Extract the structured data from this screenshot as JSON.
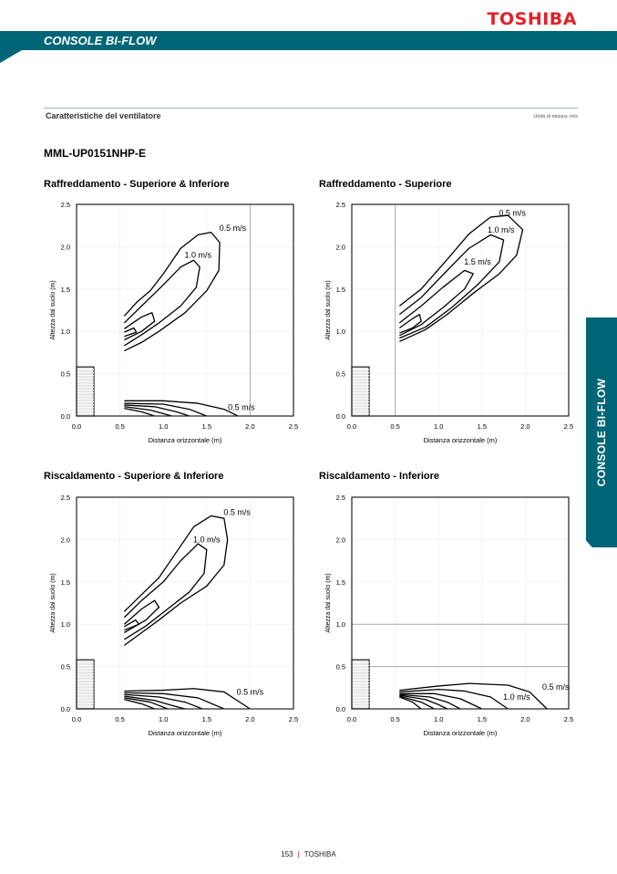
{
  "header": {
    "brand": "TOSHIBA",
    "band_title": "CONSOLE BI-FLOW"
  },
  "section": {
    "title": "Caratteristiche del ventilatore",
    "units": "Unità di misura: m/s"
  },
  "model": "MML-UP0151NHP-E",
  "side_tab": "CONSOLE BI-FLOW",
  "footer": {
    "page": "153",
    "brand": "TOSHIBA"
  },
  "colors": {
    "teal": "#006677",
    "red": "#e3202a"
  },
  "chart_data": [
    {
      "type": "contour",
      "title": "Raffreddamento - Superiore & Inferiore",
      "xlabel": "Distanza orizzontale (m)",
      "ylabel": "Altezza dal suolo (m)",
      "xlim": [
        0,
        2.5
      ],
      "ylim": [
        0,
        2.5
      ],
      "xticks": [
        "0.0",
        "0.5",
        "1.0",
        "1.5",
        "2.0",
        "2.5"
      ],
      "yticks": [
        "0.0",
        "0.5",
        "1.0",
        "1.5",
        "2.0",
        "2.5"
      ],
      "unit_box": {
        "width": 0.2,
        "height": 0.58
      },
      "ref_x": [
        2.0
      ],
      "ref_y": [],
      "contours": [
        [
          [
            0.55,
            1.18
          ],
          [
            0.7,
            1.35
          ],
          [
            0.85,
            1.48
          ],
          [
            1.0,
            1.68
          ],
          [
            1.2,
            1.98
          ],
          [
            1.4,
            2.14
          ],
          [
            1.55,
            2.17
          ],
          [
            1.65,
            2.05
          ],
          [
            1.64,
            1.72
          ],
          [
            1.5,
            1.48
          ],
          [
            1.25,
            1.22
          ],
          [
            0.95,
            1.0
          ],
          [
            0.75,
            0.87
          ],
          [
            0.55,
            0.77
          ]
        ],
        [
          [
            0.55,
            1.1
          ],
          [
            0.75,
            1.3
          ],
          [
            1.0,
            1.55
          ],
          [
            1.2,
            1.76
          ],
          [
            1.35,
            1.84
          ],
          [
            1.42,
            1.76
          ],
          [
            1.38,
            1.52
          ],
          [
            1.2,
            1.3
          ],
          [
            0.95,
            1.1
          ],
          [
            0.75,
            0.96
          ],
          [
            0.55,
            0.83
          ]
        ],
        [
          [
            0.55,
            1.03
          ],
          [
            0.75,
            1.17
          ],
          [
            0.87,
            1.22
          ],
          [
            0.9,
            1.12
          ],
          [
            0.75,
            1.0
          ],
          [
            0.55,
            0.9
          ]
        ],
        [
          [
            0.55,
            0.99
          ],
          [
            0.66,
            1.04
          ],
          [
            0.69,
            0.99
          ],
          [
            0.55,
            0.94
          ]
        ],
        [
          [
            0.55,
            0.18
          ],
          [
            1.0,
            0.18
          ],
          [
            1.4,
            0.15
          ],
          [
            1.7,
            0.08
          ],
          [
            1.86,
            0.0
          ]
        ],
        [
          [
            0.55,
            0.15
          ],
          [
            1.0,
            0.14
          ],
          [
            1.3,
            0.08
          ],
          [
            1.5,
            0.0
          ]
        ],
        [
          [
            0.55,
            0.13
          ],
          [
            0.9,
            0.11
          ],
          [
            1.15,
            0.05
          ],
          [
            1.3,
            0.0
          ]
        ],
        [
          [
            0.55,
            0.11
          ],
          [
            0.85,
            0.07
          ],
          [
            1.1,
            0.0
          ]
        ],
        [
          [
            0.55,
            0.09
          ],
          [
            0.75,
            0.05
          ],
          [
            0.9,
            0.0
          ]
        ]
      ],
      "labels": [
        {
          "text": "0.5 m/s",
          "x": 1.8,
          "y": 2.22
        },
        {
          "text": "1.0 m/s",
          "x": 1.4,
          "y": 1.9
        },
        {
          "text": "0.5 m/s",
          "x": 1.9,
          "y": 0.1
        }
      ]
    },
    {
      "type": "contour",
      "title": "Raffreddamento - Superiore",
      "xlabel": "Distanza orizzontale (m)",
      "ylabel": "Altezza dal suolo (m)",
      "xlim": [
        0,
        2.5
      ],
      "ylim": [
        0,
        2.5
      ],
      "xticks": [
        "0.0",
        "0.5",
        "1.0",
        "1.5",
        "2.0",
        "2.5"
      ],
      "yticks": [
        "0.0",
        "0.5",
        "1.0",
        "1.5",
        "2.0",
        "2.5"
      ],
      "unit_box": {
        "width": 0.2,
        "height": 0.58
      },
      "ref_x": [
        0.5
      ],
      "ref_y": [],
      "contours": [
        [
          [
            0.55,
            1.3
          ],
          [
            0.8,
            1.5
          ],
          [
            1.1,
            1.85
          ],
          [
            1.35,
            2.15
          ],
          [
            1.6,
            2.35
          ],
          [
            1.8,
            2.37
          ],
          [
            1.97,
            2.2
          ],
          [
            1.9,
            1.9
          ],
          [
            1.7,
            1.68
          ],
          [
            1.4,
            1.45
          ],
          [
            1.1,
            1.2
          ],
          [
            0.85,
            1.02
          ],
          [
            0.55,
            0.88
          ]
        ],
        [
          [
            0.55,
            1.2
          ],
          [
            0.8,
            1.4
          ],
          [
            1.1,
            1.72
          ],
          [
            1.35,
            1.98
          ],
          [
            1.6,
            2.14
          ],
          [
            1.75,
            2.08
          ],
          [
            1.7,
            1.82
          ],
          [
            1.45,
            1.55
          ],
          [
            1.15,
            1.28
          ],
          [
            0.85,
            1.05
          ],
          [
            0.55,
            0.92
          ]
        ],
        [
          [
            0.55,
            1.1
          ],
          [
            0.8,
            1.3
          ],
          [
            1.05,
            1.52
          ],
          [
            1.3,
            1.72
          ],
          [
            1.4,
            1.68
          ],
          [
            1.3,
            1.5
          ],
          [
            1.05,
            1.28
          ],
          [
            0.8,
            1.08
          ],
          [
            0.55,
            0.95
          ]
        ],
        [
          [
            0.55,
            1.04
          ],
          [
            0.7,
            1.15
          ],
          [
            0.78,
            1.2
          ],
          [
            0.8,
            1.12
          ],
          [
            0.7,
            1.04
          ],
          [
            0.55,
            0.98
          ]
        ]
      ],
      "labels": [
        {
          "text": "0.5 m/s",
          "x": 1.85,
          "y": 2.4
        },
        {
          "text": "1.0 m/s",
          "x": 1.72,
          "y": 2.2
        },
        {
          "text": "1.5 m/s",
          "x": 1.45,
          "y": 1.82
        }
      ]
    },
    {
      "type": "contour",
      "title": "Riscaldamento - Superiore & Inferiore",
      "xlabel": "Distanza orizzontale (m)",
      "ylabel": "Altezza dal suolo (m)",
      "xlim": [
        0,
        2.5
      ],
      "ylim": [
        0,
        2.5
      ],
      "xticks": [
        "0.0",
        "0.5",
        "1.0",
        "1.5",
        "2.0",
        "2.5"
      ],
      "yticks": [
        "0.0",
        "0.5",
        "1.0",
        "1.5",
        "2.0",
        "2.5"
      ],
      "unit_box": {
        "width": 0.2,
        "height": 0.58
      },
      "ref_x": [],
      "ref_y": [],
      "contours": [
        [
          [
            0.55,
            1.15
          ],
          [
            0.75,
            1.35
          ],
          [
            0.95,
            1.55
          ],
          [
            1.15,
            1.85
          ],
          [
            1.35,
            2.15
          ],
          [
            1.55,
            2.28
          ],
          [
            1.7,
            2.25
          ],
          [
            1.74,
            2.0
          ],
          [
            1.7,
            1.7
          ],
          [
            1.5,
            1.45
          ],
          [
            1.2,
            1.25
          ],
          [
            0.95,
            1.05
          ],
          [
            0.75,
            0.9
          ],
          [
            0.55,
            0.75
          ]
        ],
        [
          [
            0.55,
            1.08
          ],
          [
            0.75,
            1.28
          ],
          [
            1.0,
            1.5
          ],
          [
            1.2,
            1.75
          ],
          [
            1.4,
            1.95
          ],
          [
            1.5,
            1.88
          ],
          [
            1.47,
            1.6
          ],
          [
            1.3,
            1.38
          ],
          [
            1.05,
            1.18
          ],
          [
            0.8,
            0.98
          ],
          [
            0.55,
            0.82
          ]
        ],
        [
          [
            0.55,
            1.0
          ],
          [
            0.75,
            1.18
          ],
          [
            0.9,
            1.28
          ],
          [
            0.95,
            1.2
          ],
          [
            0.8,
            1.05
          ],
          [
            0.55,
            0.9
          ]
        ],
        [
          [
            0.55,
            0.97
          ],
          [
            0.68,
            1.05
          ],
          [
            0.72,
            1.0
          ],
          [
            0.55,
            0.93
          ]
        ],
        [
          [
            0.55,
            0.21
          ],
          [
            1.0,
            0.22
          ],
          [
            1.35,
            0.24
          ],
          [
            1.7,
            0.2
          ],
          [
            2.0,
            0.0
          ]
        ],
        [
          [
            0.55,
            0.19
          ],
          [
            1.0,
            0.18
          ],
          [
            1.4,
            0.13
          ],
          [
            1.7,
            0.0
          ]
        ],
        [
          [
            0.55,
            0.17
          ],
          [
            0.95,
            0.14
          ],
          [
            1.25,
            0.08
          ],
          [
            1.45,
            0.0
          ]
        ],
        [
          [
            0.55,
            0.15
          ],
          [
            0.9,
            0.1
          ],
          [
            1.1,
            0.04
          ],
          [
            1.25,
            0.0
          ]
        ],
        [
          [
            0.55,
            0.13
          ],
          [
            0.85,
            0.08
          ],
          [
            1.05,
            0.0
          ]
        ],
        [
          [
            0.55,
            0.11
          ],
          [
            0.75,
            0.06
          ],
          [
            0.9,
            0.0
          ]
        ]
      ],
      "labels": [
        {
          "text": "0.5 m/s",
          "x": 1.85,
          "y": 2.32
        },
        {
          "text": "1.0 m/s",
          "x": 1.5,
          "y": 2.0
        },
        {
          "text": "0.5 m/s",
          "x": 2.0,
          "y": 0.2
        }
      ]
    },
    {
      "type": "contour",
      "title": "Riscaldamento - Inferiore",
      "xlabel": "Distanza orizzontale (m)",
      "ylabel": "Altezza dal suolo (m)",
      "xlim": [
        0,
        2.5
      ],
      "ylim": [
        0,
        2.5
      ],
      "xticks": [
        "0.0",
        "0.5",
        "1.0",
        "1.5",
        "2.0",
        "2.5"
      ],
      "yticks": [
        "0.0",
        "0.5",
        "1.0",
        "1.5",
        "2.0",
        "2.5"
      ],
      "unit_box": {
        "width": 0.2,
        "height": 0.58
      },
      "ref_x": [],
      "ref_y": [
        1.0,
        0.5
      ],
      "contours": [
        [
          [
            0.55,
            0.22
          ],
          [
            1.0,
            0.27
          ],
          [
            1.35,
            0.3
          ],
          [
            1.8,
            0.28
          ],
          [
            2.05,
            0.2
          ],
          [
            2.25,
            0.0
          ]
        ],
        [
          [
            0.55,
            0.2
          ],
          [
            1.0,
            0.23
          ],
          [
            1.3,
            0.21
          ],
          [
            1.6,
            0.14
          ],
          [
            1.8,
            0.0
          ]
        ],
        [
          [
            0.55,
            0.18
          ],
          [
            0.95,
            0.18
          ],
          [
            1.25,
            0.12
          ],
          [
            1.5,
            0.0
          ]
        ],
        [
          [
            0.55,
            0.17
          ],
          [
            0.9,
            0.14
          ],
          [
            1.1,
            0.08
          ],
          [
            1.25,
            0.0
          ]
        ],
        [
          [
            0.55,
            0.16
          ],
          [
            0.85,
            0.11
          ],
          [
            1.0,
            0.05
          ],
          [
            1.1,
            0.0
          ]
        ],
        [
          [
            0.55,
            0.15
          ],
          [
            0.8,
            0.08
          ],
          [
            0.95,
            0.0
          ]
        ],
        [
          [
            0.55,
            0.14
          ],
          [
            0.7,
            0.08
          ],
          [
            0.8,
            0.0
          ]
        ]
      ],
      "labels": [
        {
          "text": "0.5 m/s",
          "x": 2.35,
          "y": 0.26
        },
        {
          "text": "1.0 m/s",
          "x": 1.9,
          "y": 0.14
        }
      ]
    }
  ]
}
